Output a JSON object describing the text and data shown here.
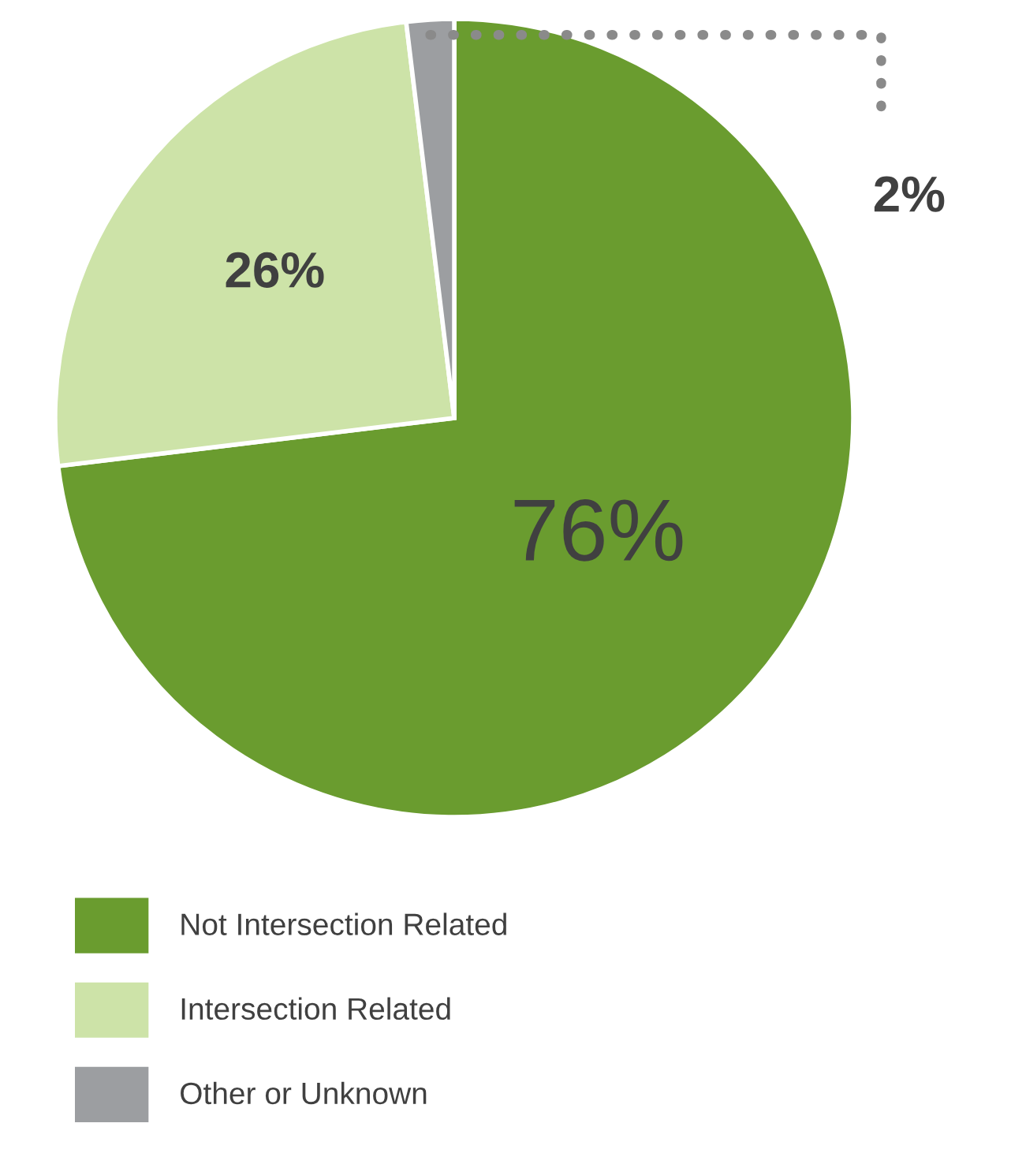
{
  "chart_data": {
    "type": "pie",
    "categories": [
      "Not Intersection Related",
      "Intersection Related",
      "Other or Unknown"
    ],
    "values": [
      76,
      26,
      2
    ],
    "colors": [
      "#6a9c2f",
      "#cde3a8",
      "#9c9ea1"
    ],
    "value_labels": [
      "76%",
      "26%",
      "2%"
    ],
    "legend": "bottom"
  }
}
